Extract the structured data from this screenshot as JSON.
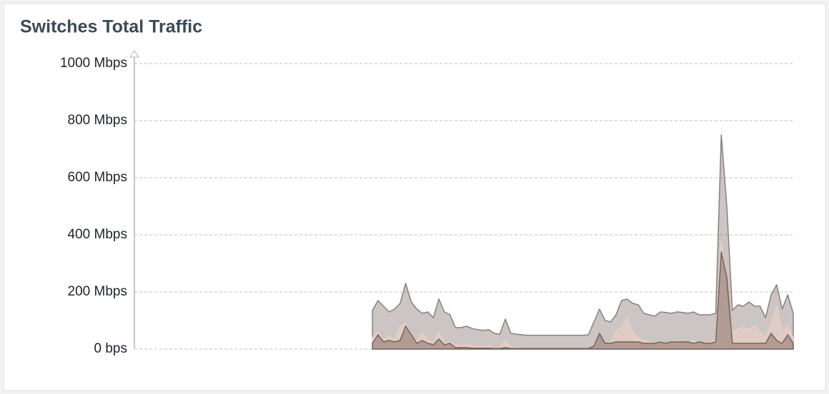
{
  "chart_data": {
    "type": "area",
    "title": "Switches Total Traffic",
    "ylim": [
      0,
      1000
    ],
    "yticks": [
      {
        "value": 0,
        "label": "0 bps"
      },
      {
        "value": 200,
        "label": "200 Mbps"
      },
      {
        "value": 400,
        "label": "400 Mbps"
      },
      {
        "value": 600,
        "label": "600 Mbps"
      },
      {
        "value": 800,
        "label": "800 Mbps"
      },
      {
        "value": 1000,
        "label": "1000 Mbps"
      }
    ],
    "grid": true,
    "series": [
      {
        "color": "#8c7f7a",
        "values": [
          null,
          null,
          null,
          null,
          null,
          null,
          null,
          null,
          null,
          null,
          null,
          null,
          null,
          null,
          null,
          null,
          null,
          null,
          null,
          null,
          null,
          null,
          null,
          null,
          null,
          null,
          null,
          null,
          null,
          null,
          null,
          null,
          null,
          null,
          null,
          null,
          null,
          null,
          null,
          null,
          null,
          null,
          null,
          135,
          170,
          150,
          130,
          140,
          160,
          230,
          165,
          140,
          125,
          130,
          110,
          175,
          130,
          120,
          75,
          75,
          80,
          72,
          68,
          65,
          68,
          55,
          52,
          105,
          55,
          52,
          50,
          48,
          48,
          48,
          48,
          48,
          48,
          48,
          48,
          48,
          48,
          48,
          50,
          95,
          140,
          100,
          95,
          120,
          170,
          175,
          160,
          155,
          125,
          120,
          115,
          130,
          128,
          125,
          130,
          128,
          125,
          130,
          120,
          120,
          120,
          125,
          750,
          500,
          135,
          155,
          150,
          165,
          150,
          150,
          110,
          190,
          225,
          140,
          190,
          125
        ]
      },
      {
        "color": "#e6cfc6",
        "values": [
          null,
          null,
          null,
          null,
          null,
          null,
          null,
          null,
          null,
          null,
          null,
          null,
          null,
          null,
          null,
          null,
          null,
          null,
          null,
          null,
          null,
          null,
          null,
          null,
          null,
          null,
          null,
          null,
          null,
          null,
          null,
          null,
          null,
          null,
          null,
          null,
          null,
          null,
          null,
          null,
          null,
          null,
          null,
          40,
          60,
          30,
          45,
          35,
          80,
          90,
          40,
          30,
          55,
          30,
          25,
          60,
          20,
          25,
          15,
          12,
          15,
          10,
          10,
          8,
          12,
          5,
          5,
          30,
          5,
          3,
          3,
          3,
          3,
          3,
          3,
          3,
          3,
          3,
          3,
          3,
          3,
          3,
          3,
          10,
          30,
          15,
          20,
          60,
          80,
          110,
          60,
          40,
          30,
          25,
          20,
          30,
          20,
          25,
          30,
          25,
          20,
          30,
          20,
          20,
          25,
          30,
          380,
          150,
          60,
          70,
          75,
          70,
          80,
          60,
          40,
          90,
          150,
          60,
          80,
          40
        ]
      },
      {
        "color": "#7a625b",
        "values": [
          null,
          null,
          null,
          null,
          null,
          null,
          null,
          null,
          null,
          null,
          null,
          null,
          null,
          null,
          null,
          null,
          null,
          null,
          null,
          null,
          null,
          null,
          null,
          null,
          null,
          null,
          null,
          null,
          null,
          null,
          null,
          null,
          null,
          null,
          null,
          null,
          null,
          null,
          null,
          null,
          null,
          null,
          null,
          20,
          50,
          25,
          30,
          25,
          30,
          80,
          50,
          20,
          30,
          20,
          15,
          35,
          15,
          20,
          5,
          5,
          5,
          3,
          3,
          3,
          3,
          2,
          2,
          5,
          2,
          2,
          2,
          2,
          2,
          2,
          2,
          2,
          2,
          2,
          2,
          2,
          2,
          2,
          2,
          10,
          55,
          20,
          20,
          25,
          25,
          25,
          25,
          25,
          20,
          20,
          20,
          25,
          20,
          25,
          25,
          25,
          25,
          20,
          25,
          20,
          20,
          25,
          340,
          250,
          20,
          20,
          20,
          20,
          20,
          20,
          20,
          55,
          30,
          20,
          50,
          20
        ]
      }
    ]
  }
}
